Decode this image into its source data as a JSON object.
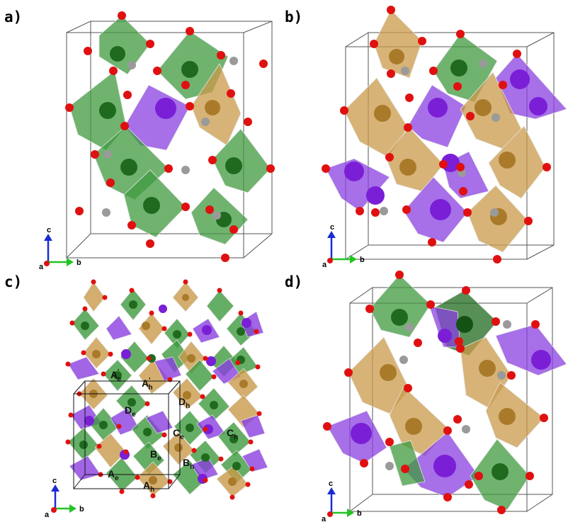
{
  "panels": [
    {
      "id": "a",
      "label": "a)"
    },
    {
      "id": "b",
      "label": "b)"
    },
    {
      "id": "c",
      "label": "c)"
    },
    {
      "id": "d",
      "label": "d)"
    }
  ],
  "axes": {
    "c": "c",
    "a": "a",
    "b": "b"
  },
  "site_labels": [
    {
      "base": "A",
      "sub": "e",
      "prime": "'"
    },
    {
      "base": "A",
      "sub": "h",
      "prime": "'"
    },
    {
      "base": "D",
      "sub": "e",
      "prime": ""
    },
    {
      "base": "D",
      "sub": "h",
      "prime": ""
    },
    {
      "base": "C",
      "sub": "e",
      "prime": ""
    },
    {
      "base": "C",
      "sub": "h",
      "prime": ""
    },
    {
      "base": "B",
      "sub": "e",
      "prime": ""
    },
    {
      "base": "B",
      "sub": "h",
      "prime": ""
    },
    {
      "base": "A",
      "sub": "e",
      "prime": ""
    },
    {
      "base": "A",
      "sub": "h",
      "prime": ""
    }
  ],
  "colors": {
    "green_octahedron": "#3f9a3f",
    "brown_octahedron": "#c99a4a",
    "purple_tetrahedron": "#8a3fe0",
    "oxygen": "#e01010",
    "carbon": "#9a9a9a",
    "axis_c": "#1a2bd6",
    "axis_b": "#22c422"
  }
}
